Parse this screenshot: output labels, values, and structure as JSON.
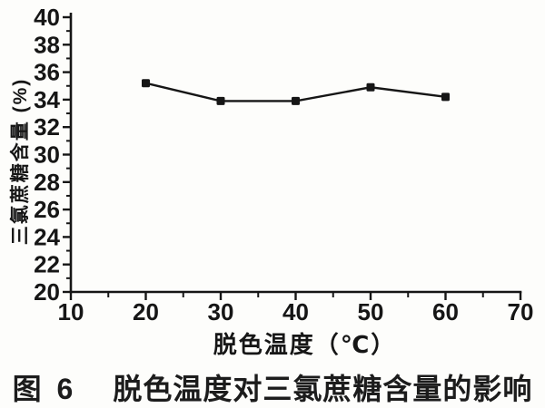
{
  "figure": {
    "caption_number": "图 6",
    "caption_title": "脱色温度对三氯蔗糖含量的影响"
  },
  "chart_data": {
    "type": "line",
    "title": "",
    "xlabel": "脱色温度（℃）",
    "ylabel": "三氯蔗糖含量 (%)",
    "x": [
      20,
      30,
      40,
      50,
      60
    ],
    "series": [
      {
        "name": "三氯蔗糖含量",
        "values": [
          35.2,
          33.9,
          33.9,
          34.9,
          34.2
        ]
      }
    ],
    "xlim": [
      10,
      70
    ],
    "ylim": [
      20,
      40
    ],
    "x_major_ticks": [
      10,
      20,
      30,
      40,
      50,
      60,
      70
    ],
    "x_minor_ticks": [
      15,
      25,
      35,
      45,
      55,
      65
    ],
    "y_major_ticks": [
      20,
      22,
      24,
      26,
      28,
      30,
      32,
      34,
      36,
      38,
      40
    ],
    "y_minor_ticks": [
      21,
      23,
      25,
      27,
      29,
      31,
      33,
      35,
      37,
      39
    ],
    "grid": false,
    "legend": "none",
    "marker": "filled-square",
    "ink_color": "#161616",
    "background_color": "#fdfdfb"
  }
}
